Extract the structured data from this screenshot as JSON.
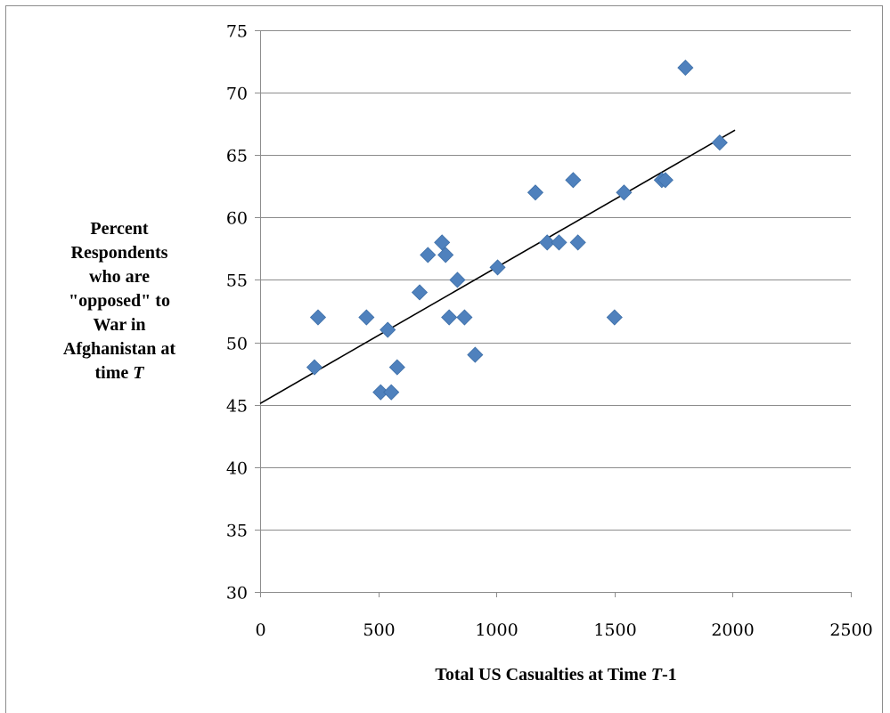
{
  "chart_data": {
    "type": "scatter",
    "title": "",
    "xlabel_parts": [
      "Total US Casualties at Time ",
      "T",
      "-1"
    ],
    "ylabel_lines": [
      [
        "Percent"
      ],
      [
        "Respondents"
      ],
      [
        "who are"
      ],
      [
        "\"opposed\" to"
      ],
      [
        "War in"
      ],
      [
        "Afghanistan at"
      ],
      [
        "time ",
        "T"
      ]
    ],
    "xlim": [
      0,
      2500
    ],
    "ylim": [
      30,
      75
    ],
    "x_ticks": [
      0,
      500,
      1000,
      1500,
      2000,
      2500
    ],
    "y_ticks": [
      30,
      35,
      40,
      45,
      50,
      55,
      60,
      65,
      70,
      75
    ],
    "grid": {
      "horizontal": true,
      "vertical": false
    },
    "marker": {
      "shape": "diamond",
      "color": "#4f81bd",
      "stroke": "#3d6fa8"
    },
    "trendline": {
      "color": "#000000",
      "x": [
        0,
        2010
      ],
      "y": [
        45.1,
        67.0
      ]
    },
    "points": [
      {
        "x": 230,
        "y": 48
      },
      {
        "x": 245,
        "y": 52
      },
      {
        "x": 450,
        "y": 52
      },
      {
        "x": 510,
        "y": 46
      },
      {
        "x": 540,
        "y": 51
      },
      {
        "x": 555,
        "y": 46
      },
      {
        "x": 580,
        "y": 48
      },
      {
        "x": 675,
        "y": 54
      },
      {
        "x": 710,
        "y": 57
      },
      {
        "x": 770,
        "y": 58
      },
      {
        "x": 785,
        "y": 57
      },
      {
        "x": 800,
        "y": 52
      },
      {
        "x": 835,
        "y": 55
      },
      {
        "x": 865,
        "y": 52
      },
      {
        "x": 910,
        "y": 49
      },
      {
        "x": 1005,
        "y": 56
      },
      {
        "x": 1165,
        "y": 62
      },
      {
        "x": 1215,
        "y": 58
      },
      {
        "x": 1265,
        "y": 58
      },
      {
        "x": 1325,
        "y": 63
      },
      {
        "x": 1345,
        "y": 58
      },
      {
        "x": 1500,
        "y": 52
      },
      {
        "x": 1540,
        "y": 62
      },
      {
        "x": 1700,
        "y": 63
      },
      {
        "x": 1715,
        "y": 63
      },
      {
        "x": 1800,
        "y": 72
      },
      {
        "x": 1945,
        "y": 66
      }
    ]
  }
}
